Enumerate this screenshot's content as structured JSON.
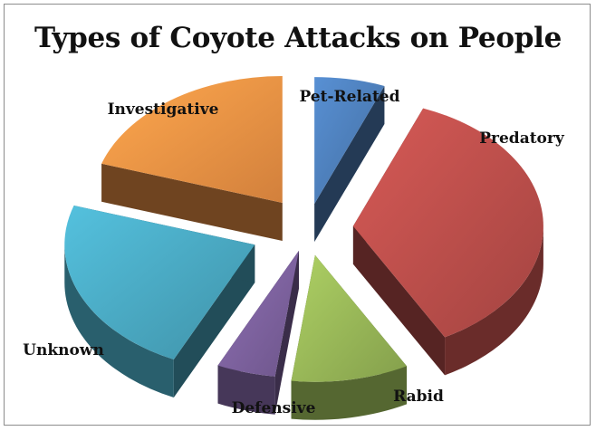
{
  "chart_data": {
    "type": "pie",
    "style": "3d-exploded",
    "title": "Types of Coyote Attacks on People",
    "slices": [
      {
        "label": "Pet-Related",
        "value": 6,
        "color": "#4f81bd"
      },
      {
        "label": "Predatory",
        "value": 36,
        "color": "#c0504d"
      },
      {
        "label": "Rabid",
        "value": 10,
        "color": "#9bbb59"
      },
      {
        "label": "Defensive",
        "value": 5,
        "color": "#8064a2"
      },
      {
        "label": "Unknown",
        "value": 23,
        "color": "#4bacc6"
      },
      {
        "label": "Investigative",
        "value": 20,
        "color": "#f79646"
      }
    ],
    "legend": "none"
  }
}
